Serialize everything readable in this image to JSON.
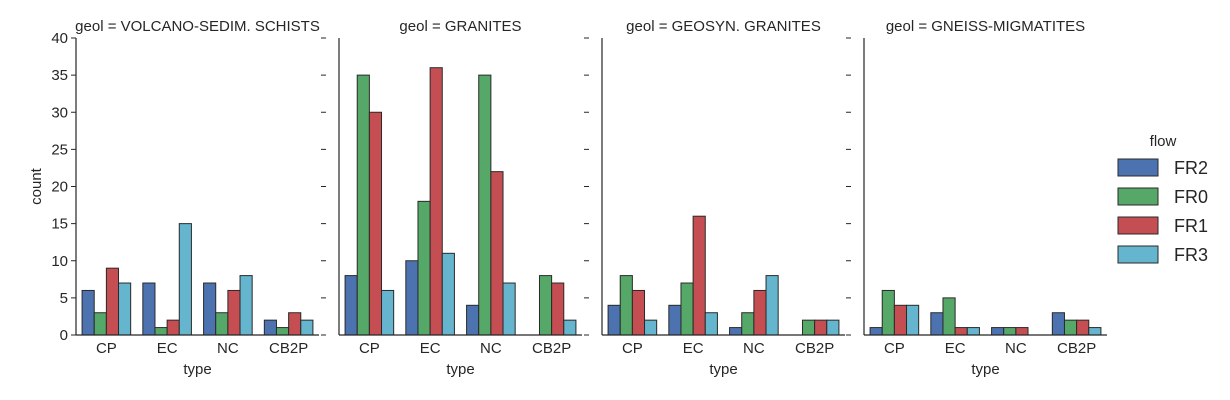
{
  "chart_data": {
    "type": "bar",
    "categories": [
      "CP",
      "EC",
      "NC",
      "CB2P"
    ],
    "xlabel": "type",
    "ylabel": "count",
    "ylim": [
      0,
      40
    ],
    "yticks": [
      0,
      5,
      10,
      15,
      20,
      25,
      30,
      35,
      40
    ],
    "grid": false,
    "legend": {
      "title": "flow",
      "position": "right",
      "entries": [
        "FR2",
        "FR0",
        "FR1",
        "FR3"
      ]
    },
    "colors": {
      "FR2": "#4c72b0",
      "FR0": "#55a868",
      "FR1": "#c44e52",
      "FR3": "#64b5cd"
    },
    "panels": [
      {
        "title": "geol = VOLCANO-SEDIM. SCHISTS",
        "series": [
          {
            "name": "FR2",
            "values": [
              6,
              7,
              7,
              2
            ]
          },
          {
            "name": "FR0",
            "values": [
              3,
              1,
              3,
              1
            ]
          },
          {
            "name": "FR1",
            "values": [
              9,
              2,
              6,
              3
            ]
          },
          {
            "name": "FR3",
            "values": [
              7,
              15,
              8,
              2
            ]
          }
        ]
      },
      {
        "title": "geol = GRANITES",
        "series": [
          {
            "name": "FR2",
            "values": [
              8,
              10,
              4,
              0
            ]
          },
          {
            "name": "FR0",
            "values": [
              35,
              18,
              35,
              8
            ]
          },
          {
            "name": "FR1",
            "values": [
              30,
              36,
              22,
              7
            ]
          },
          {
            "name": "FR3",
            "values": [
              6,
              11,
              7,
              2
            ]
          }
        ]
      },
      {
        "title": "geol = GEOSYN. GRANITES",
        "series": [
          {
            "name": "FR2",
            "values": [
              4,
              4,
              1,
              0
            ]
          },
          {
            "name": "FR0",
            "values": [
              8,
              7,
              3,
              2
            ]
          },
          {
            "name": "FR1",
            "values": [
              6,
              16,
              6,
              2
            ]
          },
          {
            "name": "FR3",
            "values": [
              2,
              3,
              8,
              2
            ]
          }
        ]
      },
      {
        "title": "geol = GNEISS-MIGMATITES",
        "series": [
          {
            "name": "FR2",
            "values": [
              1,
              3,
              1,
              3
            ]
          },
          {
            "name": "FR0",
            "values": [
              6,
              5,
              1,
              2
            ]
          },
          {
            "name": "FR1",
            "values": [
              4,
              1,
              1,
              2
            ]
          },
          {
            "name": "FR3",
            "values": [
              4,
              1,
              0,
              1
            ]
          }
        ]
      }
    ]
  }
}
